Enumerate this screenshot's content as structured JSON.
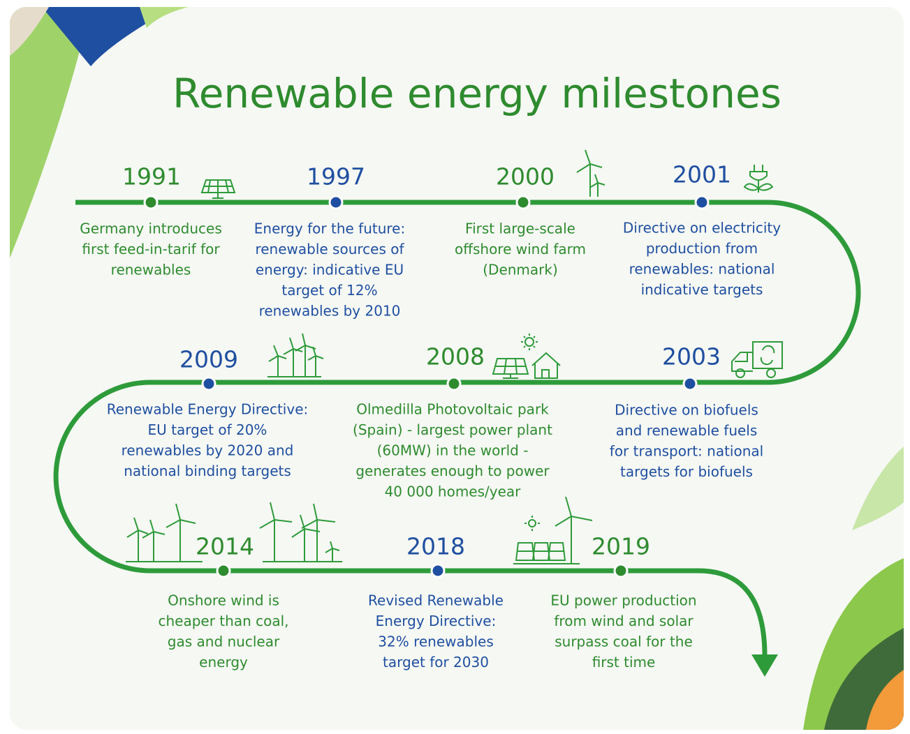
{
  "title": "Renewable energy milestones",
  "milestones": [
    {
      "year": "1991",
      "color": "#2e8b2e",
      "lines": [
        "Germany introduces",
        "first feed-in-tarif for",
        "renewables"
      ]
    },
    {
      "year": "1997",
      "color": "#1f4fa0",
      "lines": [
        "Energy for the future:",
        "renewable sources of",
        "energy: indicative EU",
        "target of 12%",
        "renewables by 2010"
      ]
    },
    {
      "year": "2000",
      "color": "#2e8b2e",
      "lines": [
        "First large-scale",
        "offshore wind farm",
        "(Denmark)"
      ]
    },
    {
      "year": "2001",
      "color": "#1f4fa0",
      "lines": [
        "Directive on electricity",
        "production from",
        "renewables: national",
        "indicative targets"
      ]
    },
    {
      "year": "2009",
      "color": "#1f4fa0",
      "lines": [
        "Renewable Energy Directive:",
        "EU target of 20%",
        "renewables by 2020 and",
        "national binding targets"
      ]
    },
    {
      "year": "2008",
      "color": "#2e8b2e",
      "lines": [
        "Olmedilla Photovoltaic park",
        "(Spain) - largest power plant",
        "(60MW) in the world -",
        "generates enough to power",
        "40 000 homes/year"
      ]
    },
    {
      "year": "2003",
      "color": "#1f4fa0",
      "lines": [
        "Directive on biofuels",
        "and renewable fuels",
        "for transport: national",
        "targets for biofuels"
      ]
    },
    {
      "year": "2014",
      "color": "#2e8b2e",
      "lines": [
        "Onshore wind is",
        "cheaper than coal,",
        "gas and nuclear",
        "energy"
      ]
    },
    {
      "year": "2018",
      "color": "#1f4fa0",
      "lines": [
        "Revised Renewable",
        "Energy Directive:",
        "32% renewables",
        "target for 2030"
      ]
    },
    {
      "year": "2019",
      "color": "#2e8b2e",
      "lines": [
        "EU power production",
        "from wind and solar",
        "surpass coal for the",
        "first time"
      ]
    }
  ]
}
